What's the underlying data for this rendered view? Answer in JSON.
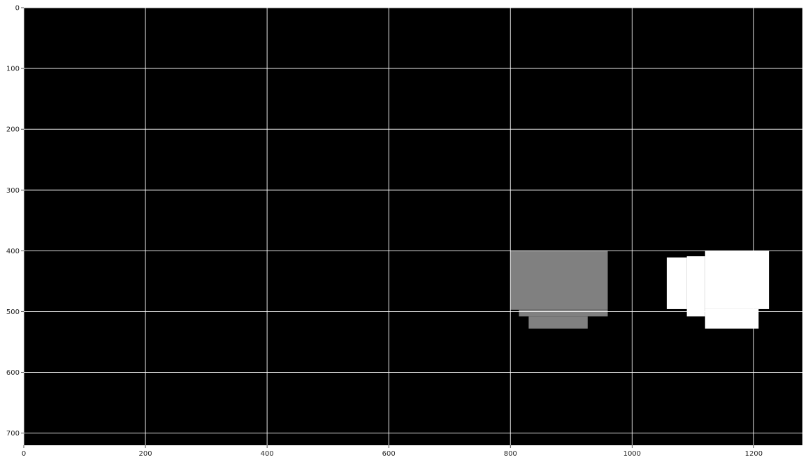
{
  "chart_data": {
    "type": "heatmap",
    "title": "",
    "xlabel": "",
    "ylabel": "",
    "xlim": [
      0,
      1280
    ],
    "ylim": [
      720,
      0
    ],
    "y_axis_inverted": true,
    "grid": true,
    "background_color": "#000000",
    "grid_color": "#ffffff",
    "x_ticks": [
      0,
      200,
      400,
      600,
      800,
      1000,
      1200
    ],
    "y_ticks": [
      0,
      100,
      200,
      300,
      400,
      500,
      600,
      700
    ],
    "x_tick_labels": [
      "0",
      "200",
      "400",
      "600",
      "800",
      "1000",
      "1200"
    ],
    "y_tick_labels": [
      "0",
      "100",
      "200",
      "300",
      "400",
      "500",
      "600",
      "700"
    ],
    "regions": [
      {
        "name": "gray-block",
        "color": "#808080",
        "rects": [
          [
            800,
            400,
            960,
            497
          ],
          [
            814,
            497,
            960,
            508
          ],
          [
            830,
            508,
            927,
            528
          ]
        ]
      },
      {
        "name": "white-block",
        "color": "#ffffff",
        "rects": [
          [
            1057,
            411,
            1090,
            496
          ],
          [
            1090,
            409,
            1120,
            508
          ],
          [
            1120,
            400,
            1225,
            496
          ],
          [
            1120,
            496,
            1208,
            528
          ]
        ]
      }
    ]
  }
}
